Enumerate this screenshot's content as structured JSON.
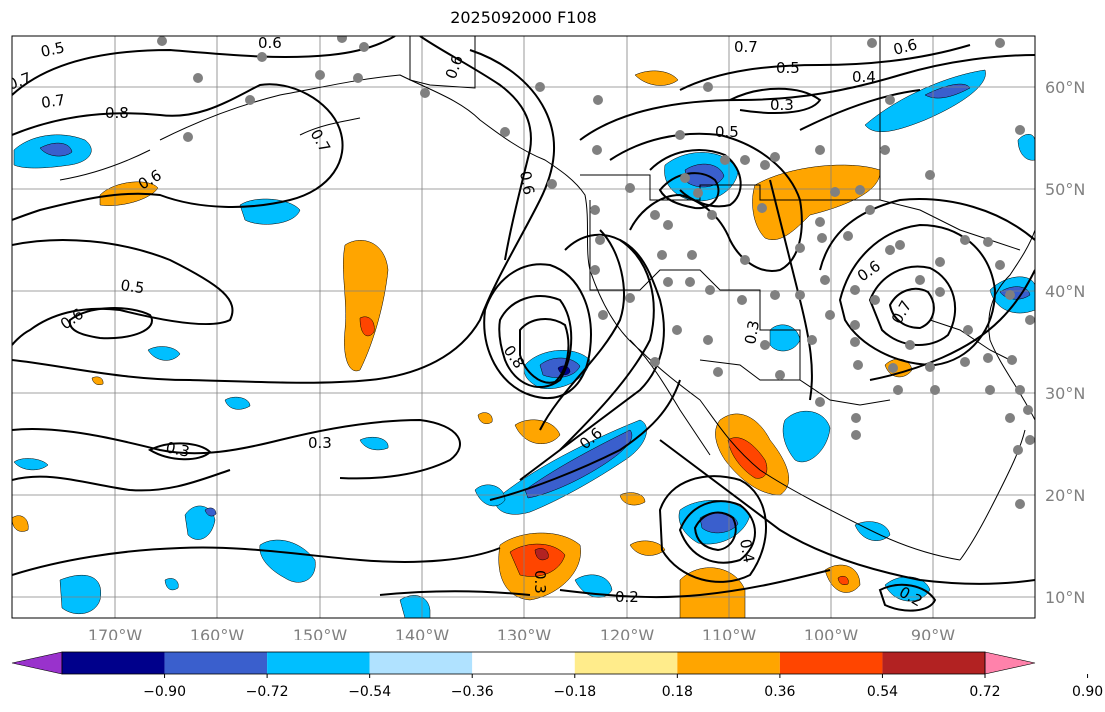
{
  "title": "2025092000 F108",
  "map": {
    "extent": {
      "lon_min": -178,
      "lon_max": -78,
      "lat_min": 8,
      "lat_max": 65
    },
    "lat_ticks": [
      {
        "value": 10,
        "label": "10°N"
      },
      {
        "value": 20,
        "label": "20°N"
      },
      {
        "value": 30,
        "label": "30°N"
      },
      {
        "value": 40,
        "label": "40°N"
      },
      {
        "value": 50,
        "label": "50°N"
      },
      {
        "value": 60,
        "label": "60°N"
      }
    ],
    "lon_ticks": [
      {
        "value": -170,
        "label": "170°W"
      },
      {
        "value": -160,
        "label": "160°W"
      },
      {
        "value": -150,
        "label": "150°W"
      },
      {
        "value": -140,
        "label": "140°W"
      },
      {
        "value": -130,
        "label": "130°W"
      },
      {
        "value": -120,
        "label": "120°W"
      },
      {
        "value": -110,
        "label": "110°W"
      },
      {
        "value": -100,
        "label": "100°W"
      },
      {
        "value": -90,
        "label": "90°W"
      }
    ],
    "contour_labels": [
      "0.5",
      "0.6",
      "0.7",
      "0.8",
      "0.6",
      "0.7",
      "0.6",
      "0.5",
      "0.6",
      "0.3",
      "0.3",
      "0.8",
      "0.6",
      "0.3",
      "0.7",
      "0.5",
      "0.4",
      "0.3",
      "0.5",
      "0.6",
      "0.7",
      "0.2",
      "0.6",
      "0.4",
      "0.3",
      "0.2",
      "0.2",
      "0.6",
      "0.7"
    ]
  },
  "colorbar": {
    "colors": [
      "#9932cc",
      "#00008b",
      "#3a5fcd",
      "#00bfff",
      "#b0e2ff",
      "#ffffff",
      "#ffec8b",
      "#ffa500",
      "#ff4500",
      "#b22222",
      "#ff82ab"
    ],
    "tick_labels": [
      "−0.90",
      "−0.72",
      "−0.54",
      "−0.36",
      "−0.18",
      "0.18",
      "0.36",
      "0.54",
      "0.72",
      "0.90"
    ]
  },
  "colors": {
    "contour": "#000000",
    "grid": "#808080",
    "station_dot": "#808080",
    "coast": "#000000"
  }
}
